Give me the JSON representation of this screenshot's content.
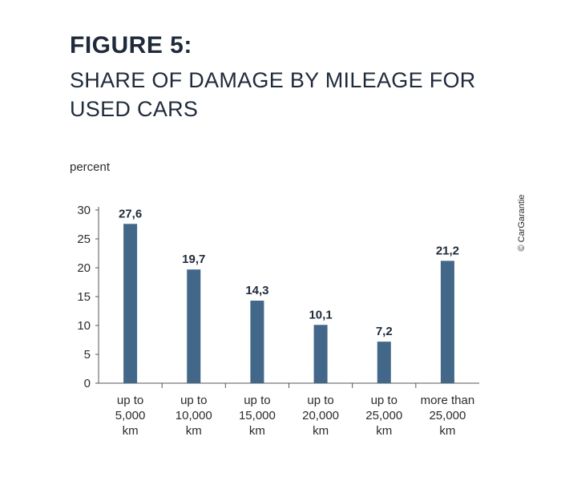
{
  "figure_label": "FIGURE 5:",
  "title_line1": "SHARE OF DAMAGE BY MILEAGE FOR",
  "title_line2": "USED CARS",
  "unit_label": "percent",
  "copyright": "© CarGarantie",
  "bar_color": "#436789",
  "chart_data": {
    "type": "bar",
    "title": "SHARE OF DAMAGE BY MILEAGE FOR USED CARS",
    "ylabel": "percent",
    "xlabel": "",
    "ylim": [
      0,
      30
    ],
    "yticks": [
      0,
      5,
      10,
      15,
      20,
      25,
      30
    ],
    "categories": [
      [
        "up to",
        "5,000",
        "km"
      ],
      [
        "up to",
        "10,000",
        "km"
      ],
      [
        "up to",
        "15,000",
        "km"
      ],
      [
        "up to",
        "20,000",
        "km"
      ],
      [
        "up to",
        "25,000",
        "km"
      ],
      [
        "more than",
        "25,000",
        "km"
      ]
    ],
    "values": [
      27.6,
      19.7,
      14.3,
      10.1,
      7.2,
      21.2
    ],
    "value_labels": [
      "27,6",
      "19,7",
      "14,3",
      "10,1",
      "7,2",
      "21,2"
    ],
    "grid": false,
    "legend": "none"
  }
}
